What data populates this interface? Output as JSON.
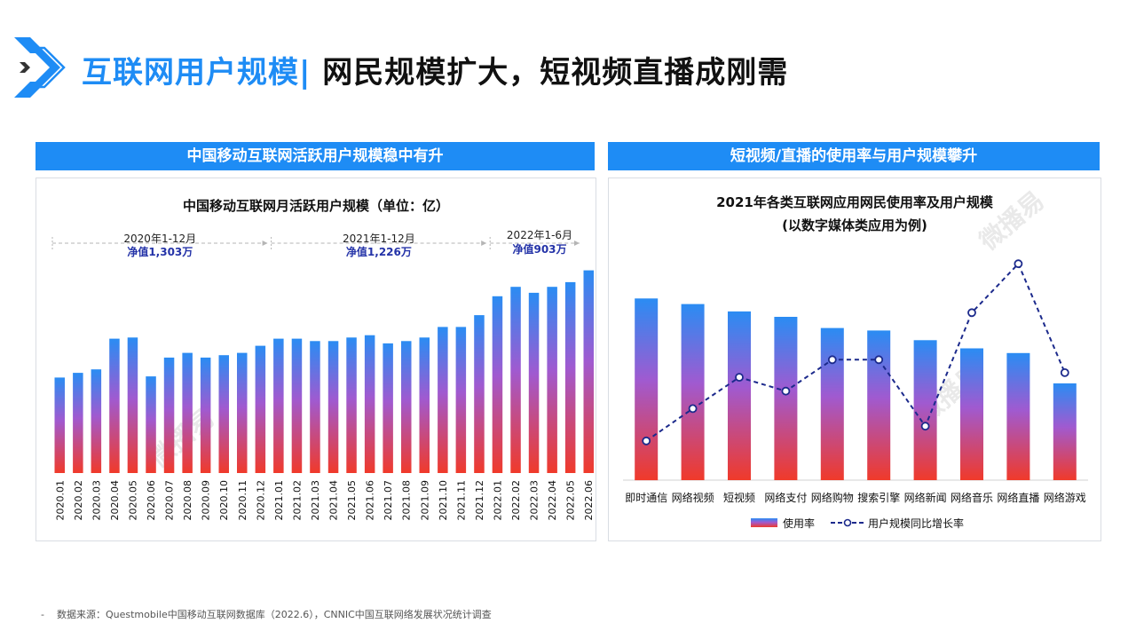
{
  "header": {
    "title_part1": "互联网用户规模|",
    "title_part2": " 网民规模扩大，短视频直播成刚需"
  },
  "left_panel": {
    "header": "中国移动互联网活跃用户规模稳中有升",
    "chart_title": "中国移动互联网月活跃用户规模（单位：亿）",
    "periods": [
      {
        "label": "2020年1-12月",
        "net": "净值1,303万"
      },
      {
        "label": "2021年1-12月",
        "net": "净值1,226万"
      },
      {
        "label": "2022年1-6月",
        "net": "净值903万"
      }
    ]
  },
  "right_panel": {
    "header": "短视频/直播的使用率与用户规模攀升",
    "chart_title_line1": "2021年各类互联网应用网民使用率及用户规模",
    "chart_title_line2": "(以数字媒体类应用为例)",
    "legend_bar": "使用率",
    "legend_line": "用户规模同比增长率"
  },
  "watermark": "微播易",
  "source": "数据来源：Questmobile中国移动互联网数据库（2022.6），CNNIC中国互联网络发展状况统计调查",
  "colors": {
    "brand_blue": "#1e8cf5",
    "bar_top": "#2a8cf3",
    "bar_bottom": "#f03a2a",
    "line": "#1c2a8c"
  },
  "chart_data": [
    {
      "type": "bar",
      "title": "中国移动互联网月活跃用户规模（单位：亿）",
      "categories": [
        "2020.01",
        "2020.02",
        "2020.03",
        "2020.04",
        "2020.05",
        "2020.06",
        "2020.07",
        "2020.08",
        "2020.09",
        "2020.10",
        "2020.11",
        "2020.12",
        "2021.01",
        "2021.02",
        "2021.03",
        "2021.04",
        "2021.05",
        "2021.06",
        "2021.07",
        "2021.08",
        "2021.09",
        "2021.10",
        "2021.11",
        "2021.12",
        "2022.01",
        "2022.02",
        "2022.03",
        "2022.04",
        "2022.05",
        "2022.06"
      ],
      "values": [
        11.31,
        11.35,
        11.38,
        11.64,
        11.65,
        11.32,
        11.48,
        11.52,
        11.48,
        11.5,
        11.52,
        11.58,
        11.64,
        11.64,
        11.62,
        11.62,
        11.65,
        11.67,
        11.6,
        11.62,
        11.65,
        11.74,
        11.74,
        11.84,
        12.0,
        12.08,
        12.03,
        12.08,
        12.12,
        12.22
      ],
      "ylim": [
        10.5,
        12.3
      ],
      "xlabel": "",
      "ylabel": "",
      "grid": false
    },
    {
      "type": "bar",
      "title": "2021年各类互联网应用网民使用率及用户规模",
      "categories": [
        "即时通信",
        "网络视频",
        "短视频",
        "网络支付",
        "网络购物",
        "搜索引擎",
        "网络新闻",
        "网络音乐",
        "网络直播",
        "网络游戏"
      ],
      "series": [
        {
          "name": "使用率",
          "type": "bar",
          "values": [
            97.5,
            94.5,
            90.5,
            87.6,
            81.6,
            80.3,
            75.1,
            70.7,
            68.2,
            51.9
          ]
        },
        {
          "name": "用户规模同比增长率",
          "type": "line",
          "values": [
            5.4,
            8.9,
            12.3,
            10.8,
            14.2,
            14.2,
            7.0,
            19.3,
            24.6,
            12.8
          ]
        }
      ],
      "ylim": [
        0,
        100
      ],
      "legend": "bottom",
      "grid": false
    }
  ]
}
